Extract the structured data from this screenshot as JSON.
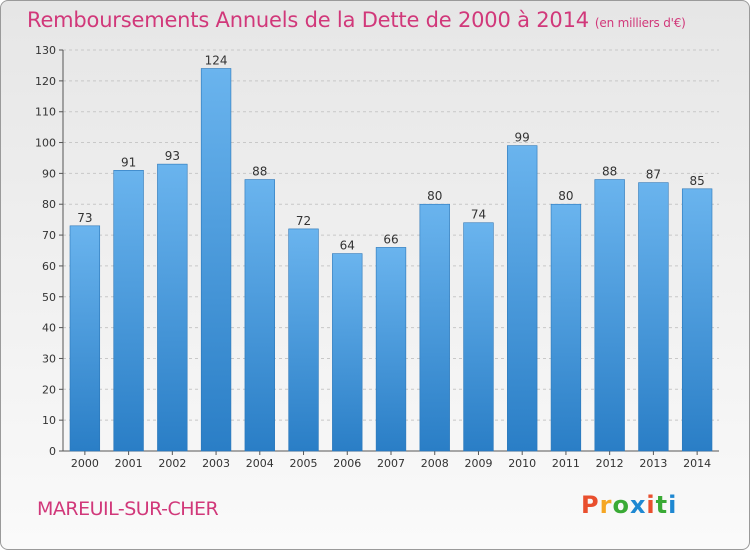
{
  "header": {
    "title": "Remboursements Annuels de la Dette de 2000 à 2014",
    "unit": "(en milliers d'€)"
  },
  "footer": {
    "city": "MAREUIL-SUR-CHER",
    "logo": [
      "P",
      "r",
      "o",
      "x",
      "i",
      "t",
      "i"
    ]
  },
  "colors": {
    "bar_top": "#6ab4ee",
    "bar_bottom": "#2a7ec6",
    "title": "#d1387a"
  },
  "chart_data": {
    "type": "bar",
    "title": "Remboursements Annuels de la Dette de 2000 à 2014",
    "subtitle": "(en milliers d'€)",
    "categories": [
      "2000",
      "2001",
      "2002",
      "2003",
      "2004",
      "2005",
      "2006",
      "2007",
      "2008",
      "2009",
      "2010",
      "2011",
      "2012",
      "2013",
      "2014"
    ],
    "values": [
      73,
      91,
      93,
      124,
      88,
      72,
      64,
      66,
      80,
      74,
      99,
      80,
      88,
      87,
      85
    ],
    "ylim": [
      0,
      130
    ],
    "yticks": [
      0,
      10,
      20,
      30,
      40,
      50,
      60,
      70,
      80,
      90,
      100,
      110,
      120,
      130
    ],
    "grid": true,
    "legend": "none"
  }
}
